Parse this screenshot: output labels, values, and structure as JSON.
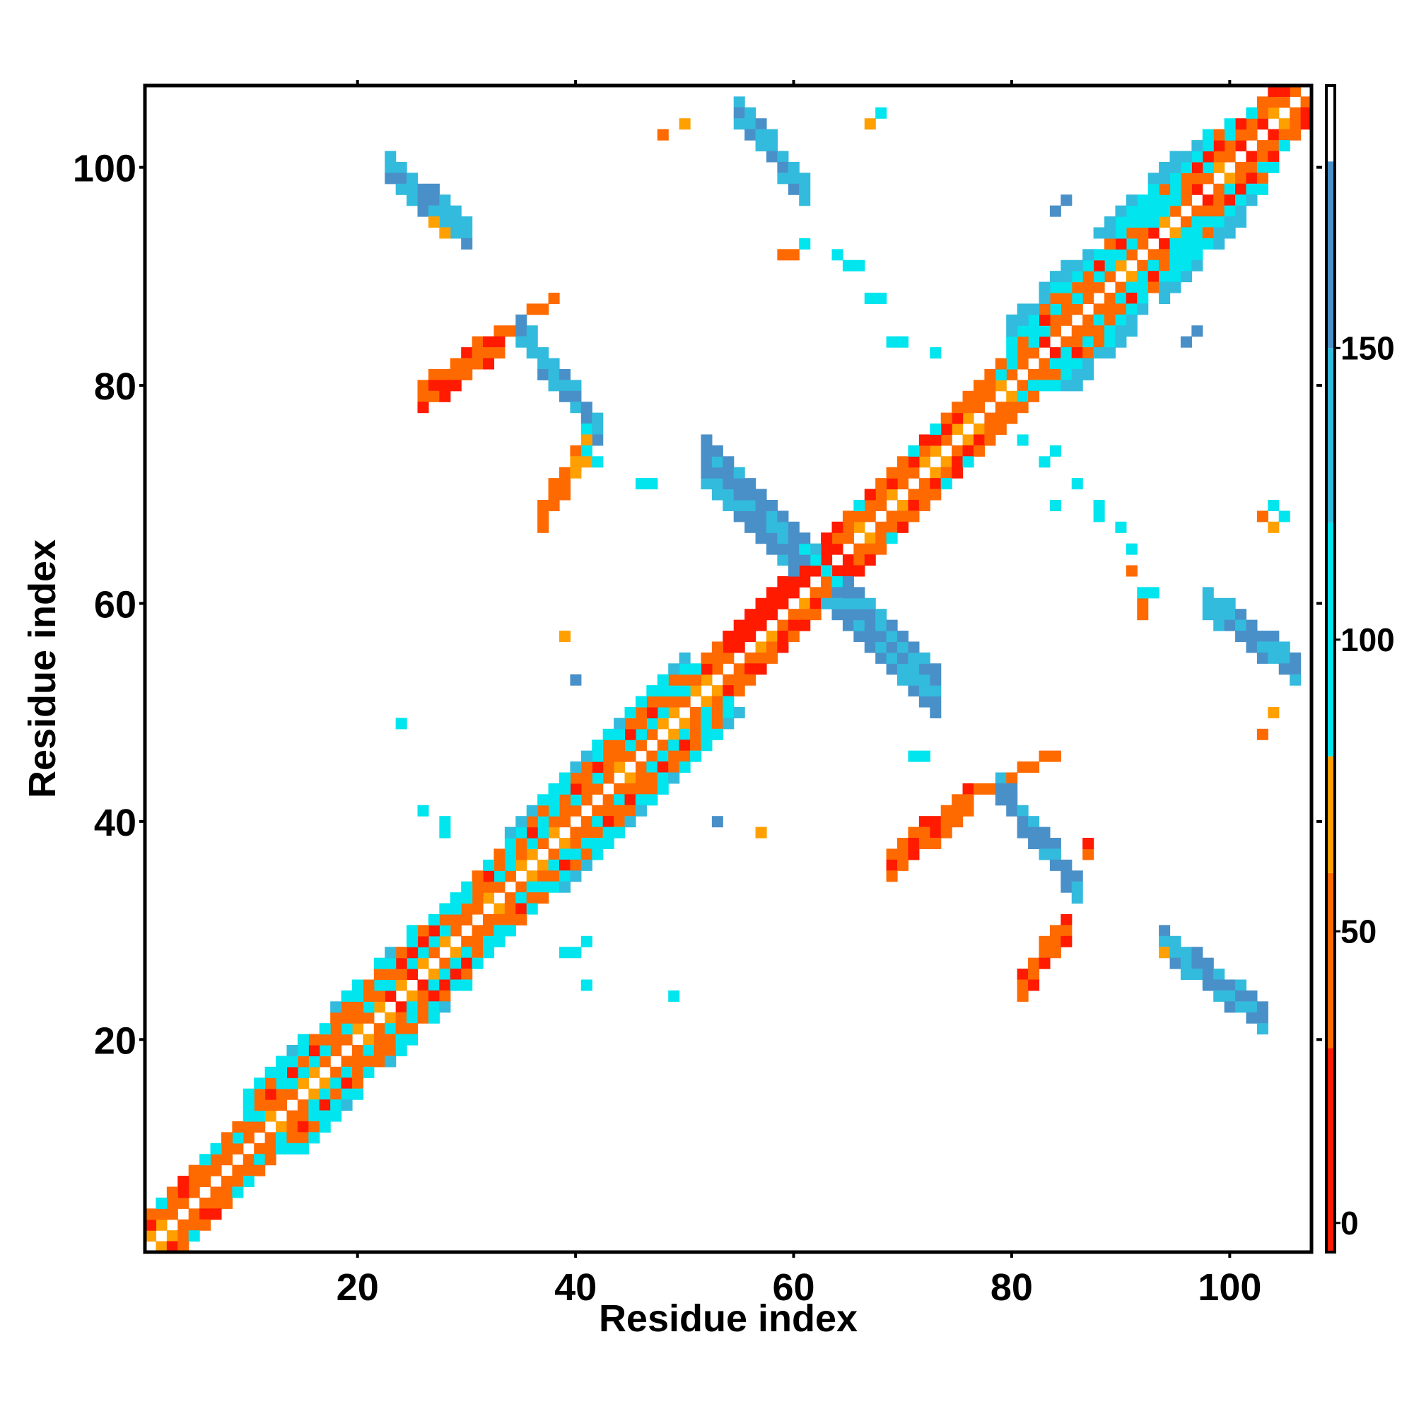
{
  "chart_data": {
    "type": "heatmap",
    "xlabel": "Residue index",
    "ylabel": "Residue index",
    "xlim": [
      1,
      107
    ],
    "ylim": [
      1,
      107
    ],
    "x_ticks": [
      20,
      40,
      60,
      80,
      100
    ],
    "y_ticks": [
      20,
      40,
      60,
      80,
      100
    ],
    "x_tick_labels": [
      "20",
      "40",
      "60",
      "80",
      "100"
    ],
    "y_tick_labels": [
      "20",
      "40",
      "60",
      "80",
      "100"
    ],
    "colorbar": {
      "range": [
        -5,
        195
      ],
      "ticks": [
        0,
        50,
        100,
        150
      ],
      "tick_labels": [
        "0",
        "50",
        "100",
        "150"
      ],
      "bands": [
        {
          "from": -5,
          "to": 30,
          "color": "#ff1a00"
        },
        {
          "from": 30,
          "to": 60,
          "color": "#ff6a00"
        },
        {
          "from": 60,
          "to": 80,
          "color": "#ffa000"
        },
        {
          "from": 80,
          "to": 120,
          "color": "#00e5ee"
        },
        {
          "from": 120,
          "to": 150,
          "color": "#33bbdd"
        },
        {
          "from": 150,
          "to": 182,
          "color": "#4a90c8"
        },
        {
          "from": 182,
          "to": 195,
          "color": "#ffffff"
        }
      ]
    },
    "colors": {
      "red": "#ff1a00",
      "orange": "#ff6a00",
      "amber": "#ffa000",
      "cyan": "#00e5ee",
      "sky": "#33bbdd",
      "steel": "#4a90c8"
    },
    "regions": [
      {
        "name": "diagonal band i+1",
        "cells": "i=1..106, j=i+1",
        "value_range": [
          0,
          70
        ]
      },
      {
        "name": "diagonal band i+2 (helix)",
        "cells": "i=1..105, j=i+2",
        "value_range": [
          40,
          110
        ]
      },
      {
        "name": "diagonal band i+3",
        "cells": "i=1..104, j=i+3",
        "value_range": [
          20,
          110
        ]
      },
      {
        "name": "diagonal band i+4",
        "cells": "i=10..50 and 80..100, j=i+4",
        "value_range": [
          90,
          130
        ]
      },
      {
        "name": "diagonal band i+5",
        "cells": "i=10..25, 45..55, 80..98, j=i+5",
        "value_range": [
          90,
          150
        ]
      },
      {
        "name": "antiparallel strip A",
        "x_range": [
          52,
          73
        ],
        "y_range": [
          52,
          73
        ],
        "value": 165
      },
      {
        "name": "hairpin 22-30/93-103",
        "x_range": [
          22,
          30
        ],
        "y_range": [
          94,
          102
        ],
        "value": 150
      },
      {
        "name": "hairpin 55-61/98-106",
        "x_range": [
          55,
          61
        ],
        "y_range": [
          98,
          106
        ],
        "value": 160
      },
      {
        "name": "arc 35-42/70-85 (orange)",
        "x_range": [
          25,
          40
        ],
        "y_range": [
          70,
          88
        ],
        "value": 45
      },
      {
        "name": "arc 35-42/70-85 (blue)",
        "x_range": [
          35,
          43
        ],
        "y_range": [
          74,
          85
        ],
        "value": 160
      },
      {
        "name": "arc 70-85/25-40 (orange)",
        "x_range": [
          69,
          86
        ],
        "y_range": [
          25,
          46
        ],
        "value": 45
      },
      {
        "name": "arc 70-85/25-40 (blue)",
        "x_range": [
          77,
          86
        ],
        "y_range": [
          35,
          43
        ],
        "value": 160
      },
      {
        "name": "hairpin 94-103/22-30",
        "x_range": [
          94,
          103
        ],
        "y_range": [
          22,
          30
        ],
        "value": 150
      },
      {
        "name": "hairpin 98-106/55-61",
        "x_range": [
          98,
          106
        ],
        "y_range": [
          55,
          61
        ],
        "value": 160
      },
      {
        "name": "scattered contacts",
        "value_range": [
          40,
          170
        ]
      }
    ]
  }
}
